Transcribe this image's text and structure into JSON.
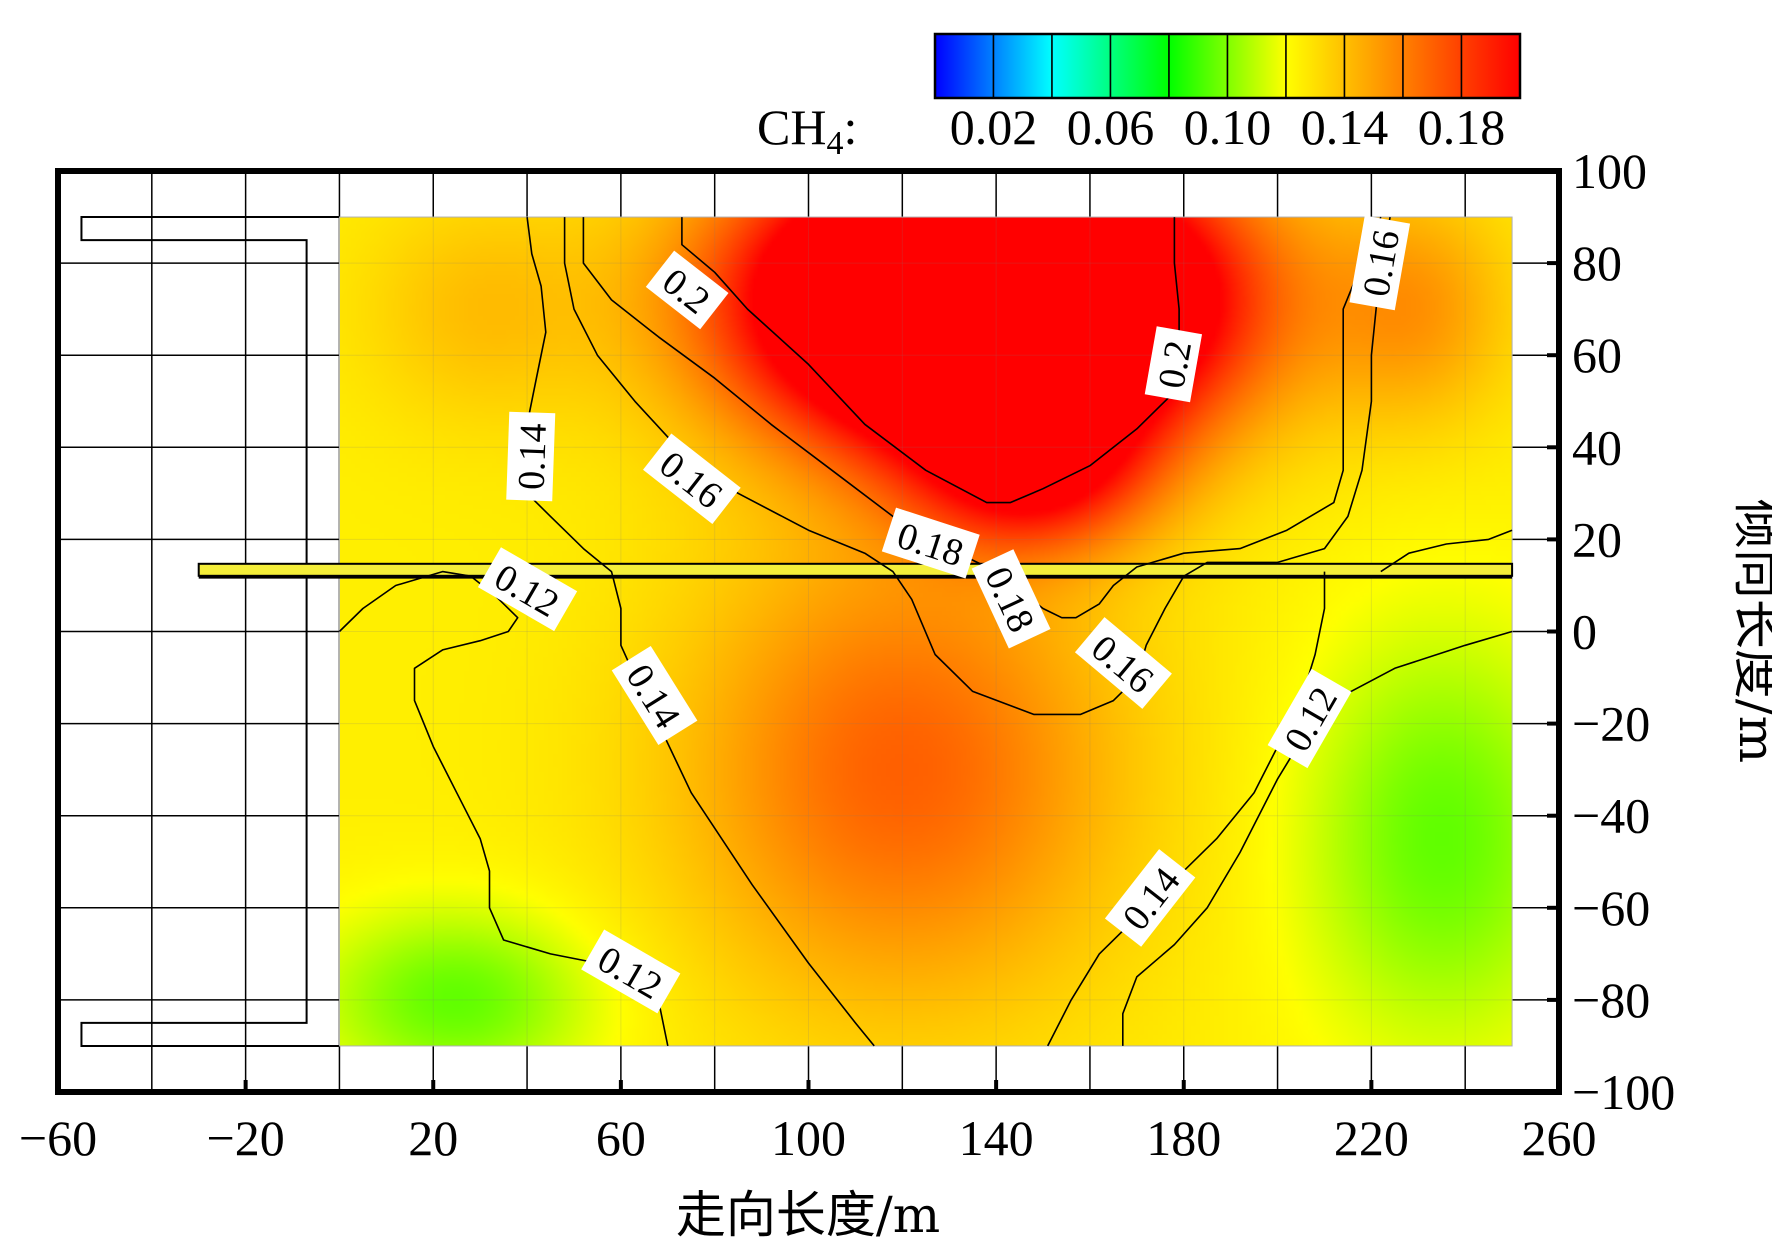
{
  "chart_data": {
    "type": "heatmap",
    "title": "",
    "xlabel": "走向长度/m",
    "ylabel": "倾向长度/m",
    "xlim": [
      -60,
      260
    ],
    "ylim": [
      -100,
      100
    ],
    "xticks": [
      -60,
      -20,
      20,
      60,
      100,
      140,
      180,
      220,
      260
    ],
    "xtick_labels": [
      "−60",
      "−20",
      "20",
      "60",
      "100",
      "140",
      "180",
      "220",
      "260"
    ],
    "yticks": [
      100,
      80,
      60,
      40,
      20,
      0,
      -20,
      -40,
      -60,
      -80,
      -100
    ],
    "ytick_labels": [
      "100",
      "80",
      "60",
      "40",
      "20",
      "0",
      "−20",
      "−40",
      "−60",
      "−80",
      "−100"
    ],
    "grid": true,
    "colorbar": {
      "prefix": "CH",
      "prefix_sub": "4",
      "prefix_suffix": ":",
      "range": [
        0.0,
        0.2
      ],
      "ticks": [
        0.02,
        0.06,
        0.1,
        0.14,
        0.18
      ],
      "tick_labels": [
        "0.02",
        "0.06",
        "0.10",
        "0.14",
        "0.18"
      ],
      "colors": [
        "#0000ff",
        "#0080ff",
        "#00ffff",
        "#00ff80",
        "#00ff00",
        "#80ff00",
        "#ffff00",
        "#ffc000",
        "#ff8000",
        "#ff4000",
        "#ff0000"
      ]
    },
    "field_extent": {
      "x": [
        0,
        250
      ],
      "y": [
        -90,
        90
      ]
    },
    "entry_line": {
      "x": [
        -30,
        250
      ],
      "y": 13
    },
    "contours": [
      {
        "level": 0.2,
        "label": "0.2",
        "points": [
          [
            73,
            90
          ],
          [
            73,
            84
          ],
          [
            80,
            78
          ],
          [
            87,
            70
          ],
          [
            100,
            58
          ],
          [
            112,
            45
          ],
          [
            125,
            35
          ],
          [
            138,
            28
          ],
          [
            143,
            28
          ],
          [
            150,
            31
          ],
          [
            160,
            36
          ],
          [
            170,
            44
          ],
          [
            178,
            52
          ],
          [
            179,
            60
          ],
          [
            179,
            70
          ],
          [
            178,
            80
          ],
          [
            178,
            90
          ]
        ]
      },
      {
        "level": 0.18,
        "label": "0.18",
        "points": [
          [
            52,
            90
          ],
          [
            52,
            80
          ],
          [
            58,
            72
          ],
          [
            68,
            64
          ],
          [
            80,
            55
          ],
          [
            92,
            45
          ],
          [
            105,
            35
          ],
          [
            118,
            25
          ],
          [
            130,
            18
          ],
          [
            140,
            13
          ],
          [
            145,
            9
          ],
          [
            150,
            5
          ],
          [
            154,
            3
          ],
          [
            157,
            3
          ],
          [
            162,
            6
          ],
          [
            165,
            10
          ],
          [
            170,
            14
          ],
          [
            180,
            17
          ],
          [
            192,
            18
          ],
          [
            202,
            22
          ],
          [
            212,
            28
          ],
          [
            214,
            35
          ],
          [
            214,
            50
          ],
          [
            214,
            60
          ],
          [
            214,
            70
          ],
          [
            218,
            80
          ],
          [
            222,
            90
          ]
        ]
      },
      {
        "level": 0.16,
        "label": "0.16",
        "points": [
          [
            48,
            90
          ],
          [
            48,
            80
          ],
          [
            50,
            70
          ],
          [
            55,
            60
          ],
          [
            63,
            50
          ],
          [
            72,
            40
          ],
          [
            85,
            30
          ],
          [
            100,
            22
          ],
          [
            112,
            17
          ],
          [
            118,
            13
          ],
          [
            122,
            7
          ],
          [
            127,
            -5
          ],
          [
            135,
            -13
          ],
          [
            148,
            -18
          ],
          [
            158,
            -18
          ],
          [
            165,
            -15
          ],
          [
            170,
            -10
          ],
          [
            172,
            -3
          ],
          [
            176,
            5
          ],
          [
            180,
            12
          ],
          [
            185,
            15
          ],
          [
            200,
            15
          ],
          [
            210,
            18
          ],
          [
            215,
            25
          ],
          [
            218,
            35
          ],
          [
            220,
            50
          ],
          [
            220,
            60
          ],
          [
            221,
            70
          ],
          [
            222,
            80
          ],
          [
            224,
            90
          ]
        ]
      },
      {
        "level": 0.14,
        "label": "0.14",
        "points": [
          [
            40,
            90
          ],
          [
            41,
            82
          ],
          [
            43,
            75
          ],
          [
            44,
            65
          ],
          [
            42,
            55
          ],
          [
            40,
            45
          ],
          [
            40,
            35
          ],
          [
            40,
            30
          ],
          [
            45,
            25
          ],
          [
            52,
            18
          ],
          [
            58,
            13
          ],
          [
            60,
            5
          ],
          [
            60,
            -3
          ],
          [
            64,
            -12
          ],
          [
            68,
            -20
          ],
          [
            75,
            -35
          ],
          [
            88,
            -55
          ],
          [
            100,
            -72
          ],
          [
            110,
            -85
          ],
          [
            114,
            -90
          ]
        ]
      },
      {
        "level": 0.14,
        "label": "0.14",
        "points": [
          [
            151,
            -90
          ],
          [
            156,
            -80
          ],
          [
            162,
            -70
          ],
          [
            175,
            -57
          ],
          [
            187,
            -45
          ],
          [
            195,
            -35
          ],
          [
            200,
            -25
          ],
          [
            205,
            -15
          ],
          [
            208,
            -5
          ],
          [
            210,
            5
          ],
          [
            210,
            13
          ]
        ]
      },
      {
        "level": 0.12,
        "label": "0.12",
        "points": [
          [
            0,
            0
          ],
          [
            5,
            5
          ],
          [
            12,
            10
          ],
          [
            22,
            13
          ],
          [
            28,
            12
          ],
          [
            33,
            8
          ],
          [
            38,
            3
          ],
          [
            36,
            0
          ],
          [
            30,
            -2
          ],
          [
            22,
            -4
          ],
          [
            16,
            -8
          ],
          [
            16,
            -15
          ],
          [
            20,
            -25
          ],
          [
            25,
            -35
          ],
          [
            30,
            -45
          ],
          [
            32,
            -52
          ],
          [
            32,
            -60
          ],
          [
            35,
            -67
          ],
          [
            45,
            -70
          ],
          [
            55,
            -72
          ],
          [
            62,
            -75
          ],
          [
            68,
            -80
          ],
          [
            70,
            -90
          ]
        ]
      },
      {
        "level": 0.12,
        "label": "0.12",
        "points": [
          [
            167,
            -90
          ],
          [
            167,
            -83
          ],
          [
            170,
            -75
          ],
          [
            178,
            -68
          ],
          [
            185,
            -60
          ],
          [
            192,
            -48
          ],
          [
            200,
            -32
          ],
          [
            206,
            -22
          ],
          [
            212,
            -15
          ],
          [
            225,
            -8
          ],
          [
            240,
            -3
          ],
          [
            250,
            0
          ]
        ]
      },
      {
        "level": 0.12,
        "label": "0.12",
        "points": [
          [
            222,
            13
          ],
          [
            228,
            17
          ],
          [
            236,
            19
          ],
          [
            245,
            20
          ],
          [
            250,
            22
          ]
        ]
      }
    ],
    "contour_labels": [
      {
        "text": "0.2",
        "x": 74,
        "y": 74,
        "angle": 38
      },
      {
        "text": "0.2",
        "x": 178,
        "y": 58,
        "angle": -80
      },
      {
        "text": "0.16",
        "x": 222,
        "y": 80,
        "angle": -80
      },
      {
        "text": "0.14",
        "x": 41,
        "y": 38,
        "angle": -88
      },
      {
        "text": "0.16",
        "x": 75,
        "y": 33,
        "angle": 38
      },
      {
        "text": "0.18",
        "x": 126,
        "y": 19,
        "angle": 18
      },
      {
        "text": "0.18",
        "x": 143,
        "y": 7,
        "angle": 65
      },
      {
        "text": "0.12",
        "x": 40,
        "y": 9,
        "angle": 30
      },
      {
        "text": "0.16",
        "x": 167,
        "y": -7,
        "angle": 40
      },
      {
        "text": "0.14",
        "x": 67,
        "y": -14,
        "angle": 58
      },
      {
        "text": "0.12",
        "x": 207,
        "y": -19,
        "angle": -60
      },
      {
        "text": "0.14",
        "x": 173,
        "y": -58,
        "angle": -52
      },
      {
        "text": "0.12",
        "x": 62,
        "y": -74,
        "angle": 30
      }
    ],
    "hot_spots": [
      {
        "x": 138,
        "y": 72,
        "value": 0.22,
        "sx": 48,
        "sy": 30
      },
      {
        "x": 148,
        "y": 35,
        "value": 0.06,
        "sx": 25,
        "sy": 18
      },
      {
        "x": 120,
        "y": -30,
        "value": 0.045,
        "sx": 45,
        "sy": 50
      },
      {
        "x": 230,
        "y": 70,
        "value": 0.025,
        "sx": 20,
        "sy": 25
      },
      {
        "x": 30,
        "y": 70,
        "value": 0.015,
        "sx": 25,
        "sy": 25
      }
    ],
    "cold_spots": [
      {
        "x": 25,
        "y": -80,
        "value": 0.03,
        "sx": 30,
        "sy": 20
      },
      {
        "x": 235,
        "y": -45,
        "value": 0.03,
        "sx": 30,
        "sy": 45
      }
    ],
    "field_base": 0.125
  }
}
